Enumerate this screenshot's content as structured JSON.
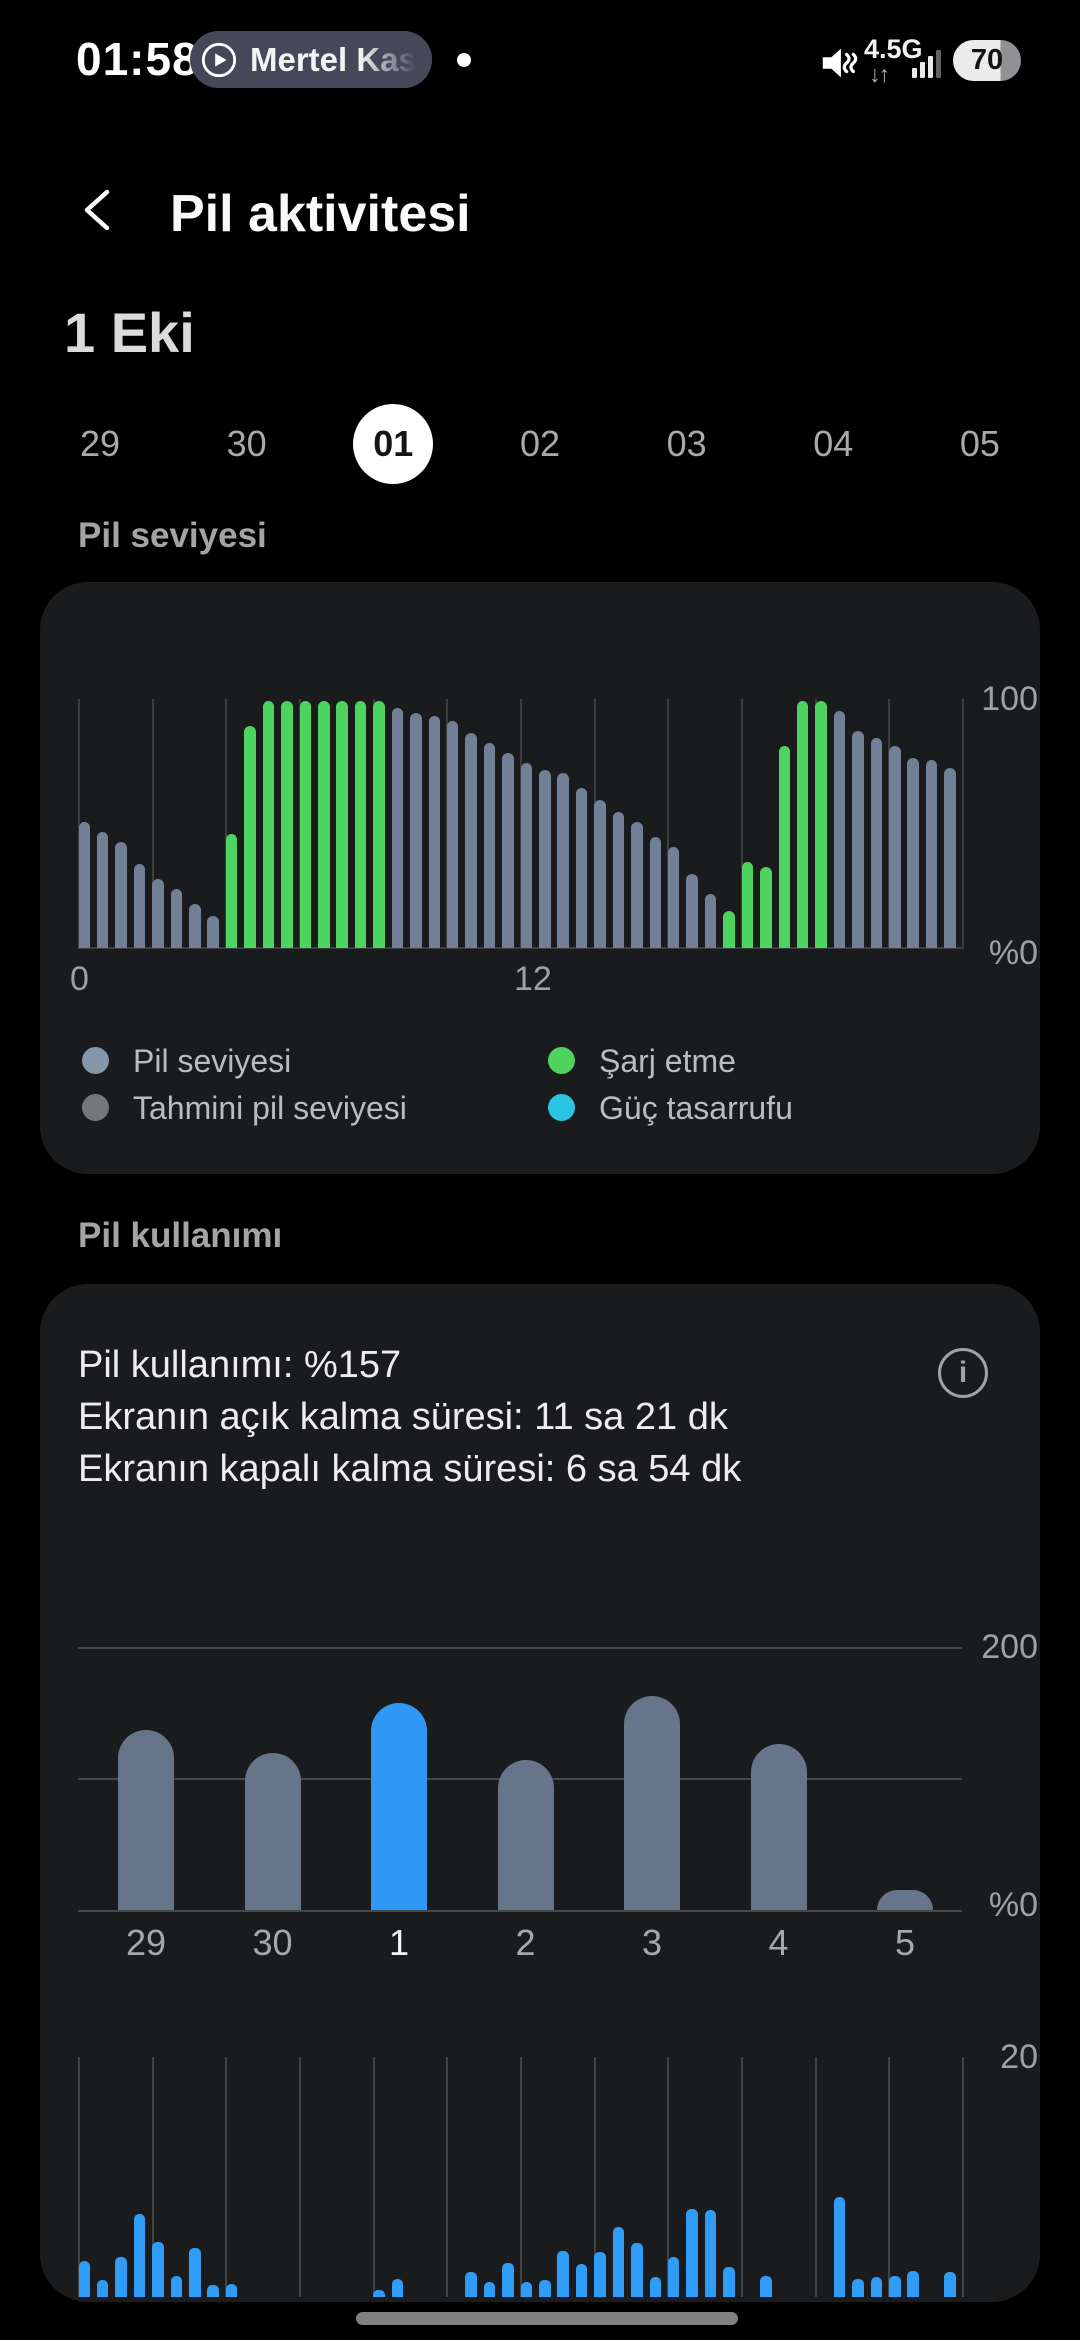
{
  "status_bar": {
    "time": "01:58",
    "media_chip_label": "Mertel Kas",
    "network_label": "4.5G",
    "network_arrows": "↓↑",
    "battery_text": "70",
    "battery_fill_percent": 70
  },
  "header": {
    "title": "Pil aktivitesi"
  },
  "date_section": {
    "selected_date_label": "1 Eki",
    "days": [
      "29",
      "30",
      "01",
      "02",
      "03",
      "04",
      "05"
    ],
    "selected_index": 2
  },
  "battery_level_section": {
    "title": "Pil seviyesi",
    "legend": [
      {
        "label": "Pil seviyesi",
        "color": "#8496ab"
      },
      {
        "label": "Tahmini pil seviyesi",
        "color": "#74787d"
      },
      {
        "label": "Şarj etme",
        "color": "#4fd35f"
      },
      {
        "label": "Güç tasarrufu",
        "color": "#2bc4e2"
      }
    ]
  },
  "battery_usage_section": {
    "title": "Pil kullanımı",
    "usage_line": "Pil kullanımı: %157",
    "screen_on_line": "Ekranın açık kalma süresi: 11 sa 21 dk",
    "screen_off_line": "Ekranın kapalı kalma süresi: 6 sa 54 dk"
  },
  "chart_data": [
    {
      "id": "battery_level_chart",
      "type": "bar",
      "title": "Pil seviyesi",
      "x_axis": "hours 0-24, one bar per 30 min",
      "ylim": [
        0,
        100
      ],
      "grid_hours_step": 2,
      "y_labels": {
        "top": "100",
        "bottom": "%0"
      },
      "x_labels": {
        "start": "0",
        "mid": "12"
      },
      "values": [
        51,
        47,
        43,
        34,
        28,
        24,
        18,
        13,
        46,
        90,
        100,
        100,
        100,
        100,
        100,
        100,
        100,
        97,
        95,
        94,
        92,
        87,
        83,
        79,
        75,
        72,
        71,
        65,
        60,
        55,
        51,
        45,
        41,
        30,
        22,
        15,
        35,
        33,
        82,
        100,
        100,
        96,
        88,
        85,
        82,
        77,
        76,
        73
      ],
      "charging": [
        0,
        0,
        0,
        0,
        0,
        0,
        0,
        0,
        1,
        1,
        1,
        1,
        1,
        1,
        1,
        1,
        1,
        0,
        0,
        0,
        0,
        0,
        0,
        0,
        0,
        0,
        0,
        0,
        0,
        0,
        0,
        0,
        0,
        0,
        0,
        1,
        1,
        1,
        1,
        1,
        1,
        0,
        0,
        0,
        0,
        0,
        0,
        0
      ]
    },
    {
      "id": "daily_usage_chart",
      "type": "bar",
      "categories": [
        "29",
        "30",
        "1",
        "2",
        "3",
        "4",
        "5"
      ],
      "values": [
        137,
        119,
        157,
        114,
        163,
        126,
        15
      ],
      "highlight_index": 2,
      "ylim": [
        0,
        200
      ],
      "gridlines": [
        0,
        100,
        200
      ],
      "y_labels": {
        "top": "200",
        "bottom": "%0"
      }
    },
    {
      "id": "screen_time_chart",
      "type": "bar",
      "x_axis": "hours 0-24, one bar per 30 min",
      "ylim": [
        0,
        20
      ],
      "grid_hours_step": 2,
      "y_label_top": "20",
      "values": [
        3,
        1.4,
        3.4,
        7,
        4.6,
        1.8,
        4.1,
        1,
        1.1,
        0,
        0,
        0,
        0,
        0,
        0,
        0,
        0.6,
        1.5,
        0,
        0,
        0,
        2.1,
        1.3,
        2.9,
        1.3,
        1.4,
        3.9,
        2.8,
        3.8,
        5.9,
        4.5,
        1.7,
        3.4,
        7.4,
        7.3,
        2.5,
        0,
        1.8,
        0,
        0,
        0,
        8.4,
        1.5,
        1.7,
        1.8,
        2.2,
        0,
        2.1
      ]
    }
  ],
  "colors": {
    "background": "#000000",
    "card": "#1a1b1d",
    "level_bar": "#718096",
    "estimated_bar": "#74787d",
    "charging": "#4fd35f",
    "power_saving": "#2bc4e2",
    "usage_bar": "#66758a",
    "highlight_blue": "#2f98f5",
    "screen_time_bar": "#2f9cf7",
    "grid": "#3c3d3f",
    "grid_strong": "#47484a",
    "text_gray": "#9fa1a3"
  }
}
